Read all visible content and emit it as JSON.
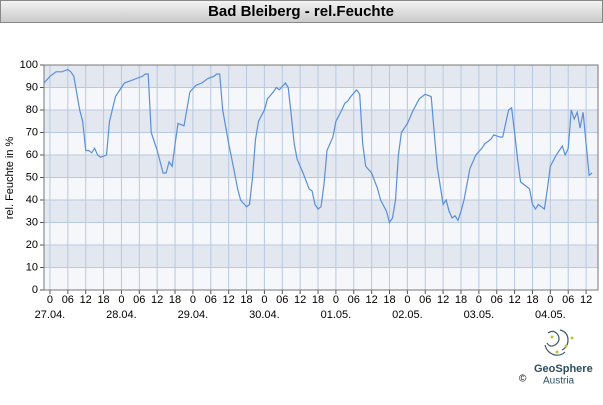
{
  "chart_data": {
    "type": "line",
    "title": "Bad Bleiberg - rel.Feuchte",
    "y_label": "rel. Feuchte in %",
    "xlim": [
      -2,
      184
    ],
    "ylim": [
      0,
      100
    ],
    "yticks": [
      0,
      10,
      20,
      30,
      40,
      50,
      60,
      70,
      80,
      90,
      100
    ],
    "xticks": [
      {
        "value": 0,
        "label": "0"
      },
      {
        "value": 6,
        "label": "06"
      },
      {
        "value": 12,
        "label": "12"
      },
      {
        "value": 18,
        "label": "18"
      },
      {
        "value": 24,
        "label": "0"
      },
      {
        "value": 30,
        "label": "06"
      },
      {
        "value": 36,
        "label": "12"
      },
      {
        "value": 42,
        "label": "18"
      },
      {
        "value": 48,
        "label": "0"
      },
      {
        "value": 54,
        "label": "06"
      },
      {
        "value": 60,
        "label": "12"
      },
      {
        "value": 66,
        "label": "18"
      },
      {
        "value": 72,
        "label": "0"
      },
      {
        "value": 78,
        "label": "06"
      },
      {
        "value": 84,
        "label": "12"
      },
      {
        "value": 90,
        "label": "18"
      },
      {
        "value": 96,
        "label": "0"
      },
      {
        "value": 102,
        "label": "06"
      },
      {
        "value": 108,
        "label": "12"
      },
      {
        "value": 114,
        "label": "18"
      },
      {
        "value": 120,
        "label": "0"
      },
      {
        "value": 126,
        "label": "06"
      },
      {
        "value": 132,
        "label": "12"
      },
      {
        "value": 138,
        "label": "18"
      },
      {
        "value": 144,
        "label": "0"
      },
      {
        "value": 150,
        "label": "06"
      },
      {
        "value": 156,
        "label": "12"
      },
      {
        "value": 162,
        "label": "18"
      },
      {
        "value": 168,
        "label": "0"
      },
      {
        "value": 174,
        "label": "06"
      },
      {
        "value": 180,
        "label": "12"
      }
    ],
    "date_labels": [
      {
        "value": 0,
        "label": "27.04."
      },
      {
        "value": 24,
        "label": "28.04."
      },
      {
        "value": 48,
        "label": "29.04."
      },
      {
        "value": 72,
        "label": "30.04."
      },
      {
        "value": 96,
        "label": "01.05."
      },
      {
        "value": 120,
        "label": "02.05."
      },
      {
        "value": 144,
        "label": "03.05."
      },
      {
        "value": 168,
        "label": "04.05."
      }
    ],
    "grid": true,
    "series": [
      {
        "color": "#5b8fd9",
        "x": [
          -2,
          0,
          2,
          4,
          6,
          7,
          8,
          10,
          11,
          12,
          13,
          14,
          15,
          16,
          17,
          19,
          20,
          22,
          24,
          25,
          27,
          29,
          31,
          32,
          33,
          34,
          36,
          38,
          39,
          40,
          41,
          42,
          43,
          45,
          47,
          49,
          51,
          53,
          55,
          56,
          57,
          58,
          60,
          62,
          63,
          64,
          66,
          67,
          68,
          69,
          70,
          72,
          73,
          75,
          76,
          77,
          79,
          80,
          81,
          82,
          83,
          85,
          87,
          88,
          89,
          90,
          91,
          92,
          93,
          95,
          96,
          98,
          99,
          100,
          101,
          103,
          104,
          105,
          106,
          108,
          110,
          111,
          113,
          114,
          115,
          116,
          117,
          118,
          120,
          122,
          124,
          126,
          128,
          129,
          130,
          132,
          133,
          134,
          135,
          136,
          137,
          138,
          139,
          141,
          143,
          145,
          146,
          148,
          149,
          151,
          152,
          154,
          155,
          156,
          157,
          158,
          160,
          161,
          162,
          163,
          164,
          165,
          166,
          167,
          168,
          170,
          172,
          173,
          174,
          175,
          176,
          177,
          178,
          179,
          180,
          181,
          182
        ],
        "values": [
          92,
          95,
          97,
          97,
          98,
          97,
          95,
          80,
          75,
          62,
          62,
          61,
          63,
          60,
          59,
          60,
          75,
          86,
          90,
          92,
          93,
          94,
          95,
          96,
          96,
          70,
          62,
          52,
          52,
          57,
          55,
          65,
          74,
          73,
          88,
          91,
          92,
          94,
          95,
          96,
          96,
          80,
          65,
          52,
          45,
          40,
          37,
          38,
          50,
          67,
          75,
          80,
          85,
          88,
          90,
          89,
          92,
          90,
          78,
          65,
          58,
          52,
          45,
          44,
          38,
          36,
          37,
          47,
          62,
          68,
          75,
          80,
          83,
          84,
          86,
          89,
          87,
          65,
          55,
          52,
          45,
          40,
          35,
          30,
          32,
          40,
          60,
          70,
          74,
          80,
          85,
          87,
          86,
          70,
          55,
          38,
          40,
          35,
          32,
          33,
          31,
          35,
          40,
          54,
          60,
          63,
          65,
          67,
          69,
          68,
          68,
          80,
          81,
          70,
          58,
          48,
          46,
          45,
          38,
          36,
          38,
          37,
          36,
          45,
          55,
          60,
          64,
          60,
          63,
          80,
          76,
          79,
          72,
          79,
          65,
          51,
          52
        ]
      }
    ],
    "logo": {
      "name": "GeoSphere",
      "country": "Austria",
      "copyright": "©"
    }
  }
}
